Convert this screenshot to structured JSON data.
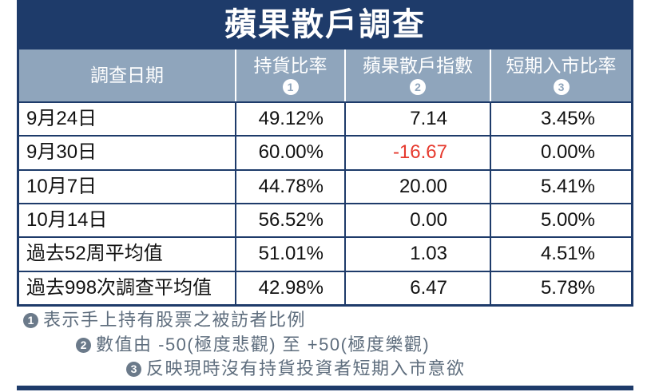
{
  "colors": {
    "navy": "#1e3b6a",
    "header_fill": "#8fa5bc",
    "header_text": "#ffffff",
    "cell_text": "#111111",
    "negative": "#e63a2e",
    "note_text": "#5e6d7d",
    "note_marker": "#6b7a8a"
  },
  "chart_data": {
    "type": "table",
    "title": "蘋果散戶調查",
    "columns": [
      {
        "label": "調查日期"
      },
      {
        "label": "持貨比率",
        "marker": "1"
      },
      {
        "label": "蘋果散戶指數",
        "marker": "2"
      },
      {
        "label": "短期入市比率",
        "marker": "3"
      }
    ],
    "rows": [
      {
        "date": "9月24日",
        "holding_ratio": "49.12%",
        "retail_index": "7.14",
        "entry_ratio": "3.45%"
      },
      {
        "date": "9月30日",
        "holding_ratio": "60.00%",
        "retail_index": "-16.67",
        "entry_ratio": "0.00%"
      },
      {
        "date": "10月7日",
        "holding_ratio": "44.78%",
        "retail_index": "20.00",
        "entry_ratio": "5.41%"
      },
      {
        "date": "10月14日",
        "holding_ratio": "56.52%",
        "retail_index": "0.00",
        "entry_ratio": "5.00%"
      },
      {
        "date": "過去52周平均值",
        "holding_ratio": "51.01%",
        "retail_index": "1.03",
        "entry_ratio": "4.51%"
      },
      {
        "date": "過去998次調查平均值",
        "holding_ratio": "42.98%",
        "retail_index": "6.47",
        "entry_ratio": "5.78%"
      }
    ]
  },
  "notes": [
    {
      "marker": "1",
      "text": "表示手上持有股票之被訪者比例"
    },
    {
      "marker": "2",
      "text": "數值由 -50(極度悲觀) 至 +50(極度樂觀)"
    },
    {
      "marker": "3",
      "text": "反映現時沒有持貨投資者短期入市意欲"
    }
  ]
}
